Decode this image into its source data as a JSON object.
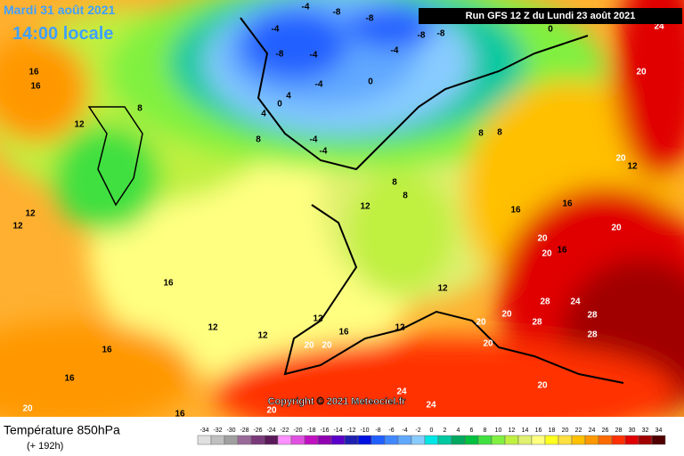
{
  "header": {
    "date": "Mardi 31 août 2021",
    "time": "14:00 locale",
    "run": "Run GFS 12 Z du Lundi 23 août 2021"
  },
  "copyright": "Copyright © 2021 Meteociel.fr",
  "legend": {
    "title": "Température 850hPa",
    "subtitle": "(+ 192h)",
    "scale": {
      "values": [
        -34,
        -32,
        -30,
        -28,
        -26,
        -24,
        -22,
        -20,
        -18,
        -16,
        -14,
        -12,
        -10,
        -8,
        -6,
        -4,
        -2,
        0,
        2,
        4,
        6,
        8,
        10,
        12,
        14,
        16,
        18,
        20,
        22,
        24,
        26,
        28,
        30,
        32,
        34
      ],
      "colors": [
        "#e0e0e0",
        "#c0c0c0",
        "#a0a0a0",
        "#9a6a9a",
        "#7a3a7a",
        "#5a1a5a",
        "#ff90ff",
        "#e050e0",
        "#c010c0",
        "#9000b0",
        "#5a00c8",
        "#2020b0",
        "#0010e0",
        "#2060ff",
        "#4088ff",
        "#60a8ff",
        "#88ccff",
        "#00e6e6",
        "#00c8a0",
        "#00a860",
        "#00c040",
        "#40e040",
        "#80f040",
        "#c0f040",
        "#e0f070",
        "#ffff80",
        "#ffff20",
        "#ffe040",
        "#ffc000",
        "#ff9800",
        "#ff6a00",
        "#ff3000",
        "#e00000",
        "#a00000",
        "#500000"
      ]
    }
  },
  "contour_labels": [
    -8,
    -4,
    -4,
    -8,
    -8,
    -8,
    -4,
    -4,
    0,
    -4,
    -8,
    4,
    4,
    0,
    -4,
    -4,
    8,
    8,
    8,
    12,
    8,
    16,
    16,
    12,
    12,
    8,
    12,
    8,
    16,
    16,
    20,
    20,
    20,
    16,
    12,
    16,
    12,
    12,
    12,
    16,
    20,
    20,
    12,
    20,
    20,
    28,
    24,
    28,
    28,
    28,
    20,
    20,
    16,
    16,
    20,
    16,
    20,
    24,
    24,
    20,
    24,
    20,
    12,
    0
  ]
}
